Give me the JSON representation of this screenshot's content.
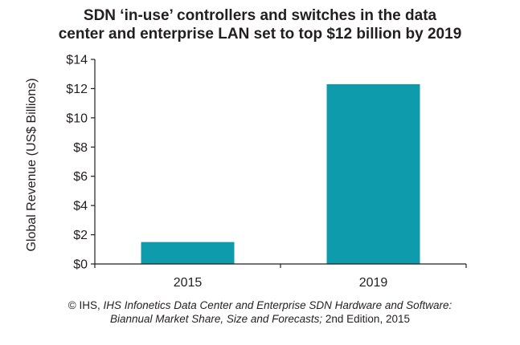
{
  "chart_data": {
    "type": "bar",
    "title": "SDN ‘in-use’ controllers and switches in the data center and enterprise LAN set to top $12 billion by 2019",
    "title_lines": [
      "SDN ‘in-use’ controllers and switches in the data",
      "center and enterprise LAN set to top $12 billion by 2019"
    ],
    "categories": [
      "2015",
      "2019"
    ],
    "values": [
      1.5,
      12.3
    ],
    "xlabel": "",
    "ylabel": "Global Revenue (US$ Billions)",
    "ylim": [
      0,
      14
    ],
    "yticks": [
      0,
      2,
      4,
      6,
      8,
      10,
      12,
      14
    ],
    "ytick_labels": [
      "$0",
      "$2",
      "$4",
      "$6",
      "$8",
      "$10",
      "$12",
      "$14"
    ],
    "bar_color": "#0e9bac",
    "grid": false,
    "legend": false
  },
  "source": {
    "prefix": "© IHS, ",
    "italic_line1": "IHS Infonetics Data Center and Enterprise SDN Hardware and Software:",
    "italic_line2": "Biannual Market Share, Size and Forecasts;",
    "suffix": " 2nd Edition, 2015"
  }
}
